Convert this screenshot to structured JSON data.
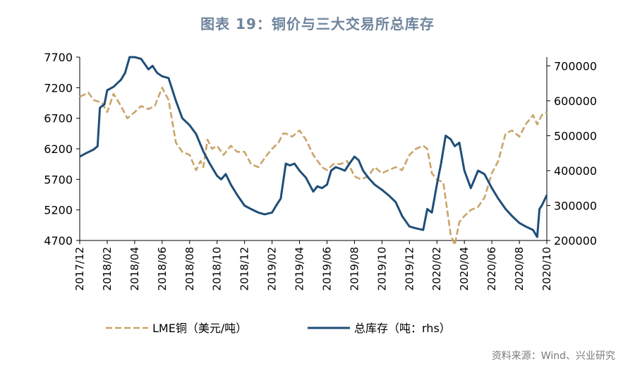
{
  "chart_data": {
    "type": "line",
    "title": "图表 19：铜价与三大交易所总库存",
    "source": "资料来源：Wind、兴业研究",
    "colors": {
      "lme": "#c9a56a",
      "inventory": "#1f4e79",
      "axis": "#000000",
      "title": "#6f849c"
    },
    "x_tick_labels": [
      "2017/12",
      "2018/02",
      "2018/04",
      "2018/06",
      "2018/08",
      "2018/10",
      "2018/12",
      "2019/02",
      "2019/04",
      "2019/06",
      "2019/08",
      "2019/10",
      "2019/12",
      "2020/02",
      "2020/04",
      "2020/06",
      "2020/08",
      "2020/10"
    ],
    "x_range": [
      "2017-12",
      "2020-10"
    ],
    "left_axis": {
      "ticks": [
        4700,
        5200,
        5700,
        6200,
        6700,
        7200,
        7700
      ],
      "range": [
        4700,
        7700
      ]
    },
    "right_axis": {
      "ticks": [
        200000,
        300000,
        400000,
        500000,
        600000,
        700000
      ],
      "range": [
        200000,
        725000
      ]
    },
    "grid": false,
    "legend_position": "bottom",
    "series": [
      {
        "name": "LME铜（美元/吨）",
        "axis": "left",
        "style": "dashed",
        "points": [
          [
            "2017-12",
            7050
          ],
          [
            "2017-12-20",
            7120
          ],
          [
            "2018-01",
            7000
          ],
          [
            "2018-01-20",
            6950
          ],
          [
            "2018-02",
            6800
          ],
          [
            "2018-02-15",
            7100
          ],
          [
            "2018-03",
            6900
          ],
          [
            "2018-03-15",
            6700
          ],
          [
            "2018-04",
            6800
          ],
          [
            "2018-04-15",
            6900
          ],
          [
            "2018-05",
            6850
          ],
          [
            "2018-05-15",
            6900
          ],
          [
            "2018-06",
            7200
          ],
          [
            "2018-06-15",
            7000
          ],
          [
            "2018-07",
            6300
          ],
          [
            "2018-07-15",
            6150
          ],
          [
            "2018-08",
            6100
          ],
          [
            "2018-08-15",
            5850
          ],
          [
            "2018-08-25",
            6000
          ],
          [
            "2018-09",
            5900
          ],
          [
            "2018-09-10",
            6350
          ],
          [
            "2018-09-20",
            6200
          ],
          [
            "2018-10",
            6250
          ],
          [
            "2018-10-15",
            6100
          ],
          [
            "2018-11",
            6250
          ],
          [
            "2018-11-15",
            6150
          ],
          [
            "2018-12",
            6150
          ],
          [
            "2018-12-15",
            5950
          ],
          [
            "2019-01",
            5900
          ],
          [
            "2019-01-20",
            6100
          ],
          [
            "2019-02",
            6200
          ],
          [
            "2019-02-15",
            6300
          ],
          [
            "2019-02-25",
            6450
          ],
          [
            "2019-03",
            6450
          ],
          [
            "2019-03-15",
            6400
          ],
          [
            "2019-04",
            6500
          ],
          [
            "2019-04-15",
            6350
          ],
          [
            "2019-05",
            6100
          ],
          [
            "2019-05-20",
            5900
          ],
          [
            "2019-06",
            5850
          ],
          [
            "2019-06-15",
            5950
          ],
          [
            "2019-07",
            5950
          ],
          [
            "2019-07-15",
            6000
          ],
          [
            "2019-08",
            5750
          ],
          [
            "2019-08-15",
            5700
          ],
          [
            "2019-09",
            5750
          ],
          [
            "2019-09-15",
            5900
          ],
          [
            "2019-10",
            5800
          ],
          [
            "2019-10-15",
            5850
          ],
          [
            "2019-11",
            5900
          ],
          [
            "2019-11-15",
            5850
          ],
          [
            "2019-12",
            6100
          ],
          [
            "2019-12-15",
            6200
          ],
          [
            "2020-01",
            6250
          ],
          [
            "2020-01-10",
            6200
          ],
          [
            "2020-01-20",
            5800
          ],
          [
            "2020-02",
            5700
          ],
          [
            "2020-02-15",
            5650
          ],
          [
            "2020-03",
            4800
          ],
          [
            "2020-03-10",
            4625
          ],
          [
            "2020-03-20",
            5000
          ],
          [
            "2020-04",
            5100
          ],
          [
            "2020-04-15",
            5200
          ],
          [
            "2020-05",
            5250
          ],
          [
            "2020-05-15",
            5400
          ],
          [
            "2020-06",
            5800
          ],
          [
            "2020-06-15",
            6000
          ],
          [
            "2020-07",
            6450
          ],
          [
            "2020-07-15",
            6500
          ],
          [
            "2020-08",
            6400
          ],
          [
            "2020-08-15",
            6600
          ],
          [
            "2020-09",
            6750
          ],
          [
            "2020-09-10",
            6600
          ],
          [
            "2020-09-20",
            6750
          ],
          [
            "2020-10",
            6800
          ]
        ]
      },
      {
        "name": "总库存（吨：rhs）",
        "axis": "right",
        "style": "solid",
        "points": [
          [
            "2017-12",
            440000
          ],
          [
            "2017-12-15",
            450000
          ],
          [
            "2018-01",
            460000
          ],
          [
            "2018-01-10",
            470000
          ],
          [
            "2018-01-15",
            580000
          ],
          [
            "2018-01-25",
            590000
          ],
          [
            "2018-02",
            630000
          ],
          [
            "2018-02-15",
            640000
          ],
          [
            "2018-03",
            660000
          ],
          [
            "2018-03-10",
            680000
          ],
          [
            "2018-03-20",
            725000
          ],
          [
            "2018-04",
            725000
          ],
          [
            "2018-04-15",
            720000
          ],
          [
            "2018-05",
            690000
          ],
          [
            "2018-05-10",
            700000
          ],
          [
            "2018-05-20",
            680000
          ],
          [
            "2018-06",
            670000
          ],
          [
            "2018-06-15",
            665000
          ],
          [
            "2018-07",
            600000
          ],
          [
            "2018-07-15",
            550000
          ],
          [
            "2018-08",
            530000
          ],
          [
            "2018-08-15",
            505000
          ],
          [
            "2018-09",
            455000
          ],
          [
            "2018-09-15",
            420000
          ],
          [
            "2018-10",
            385000
          ],
          [
            "2018-10-10",
            375000
          ],
          [
            "2018-10-20",
            390000
          ],
          [
            "2018-11",
            360000
          ],
          [
            "2018-11-15",
            330000
          ],
          [
            "2018-12",
            300000
          ],
          [
            "2018-12-15",
            290000
          ],
          [
            "2019-01",
            280000
          ],
          [
            "2019-01-15",
            275000
          ],
          [
            "2019-02",
            280000
          ],
          [
            "2019-02-10",
            300000
          ],
          [
            "2019-02-20",
            320000
          ],
          [
            "2019-03",
            420000
          ],
          [
            "2019-03-10",
            415000
          ],
          [
            "2019-03-20",
            420000
          ],
          [
            "2019-04",
            400000
          ],
          [
            "2019-04-15",
            380000
          ],
          [
            "2019-05",
            340000
          ],
          [
            "2019-05-10",
            355000
          ],
          [
            "2019-05-20",
            350000
          ],
          [
            "2019-06",
            360000
          ],
          [
            "2019-06-10",
            400000
          ],
          [
            "2019-06-20",
            410000
          ],
          [
            "2019-07",
            405000
          ],
          [
            "2019-07-10",
            400000
          ],
          [
            "2019-07-20",
            420000
          ],
          [
            "2019-08",
            440000
          ],
          [
            "2019-08-10",
            430000
          ],
          [
            "2019-08-20",
            400000
          ],
          [
            "2019-09",
            380000
          ],
          [
            "2019-09-15",
            360000
          ],
          [
            "2019-10",
            345000
          ],
          [
            "2019-10-15",
            330000
          ],
          [
            "2019-11",
            310000
          ],
          [
            "2019-11-15",
            270000
          ],
          [
            "2019-12",
            240000
          ],
          [
            "2019-12-15",
            235000
          ],
          [
            "2020-01",
            230000
          ],
          [
            "2020-01-10",
            290000
          ],
          [
            "2020-01-20",
            280000
          ],
          [
            "2020-02",
            360000
          ],
          [
            "2020-02-10",
            420000
          ],
          [
            "2020-02-20",
            500000
          ],
          [
            "2020-03",
            490000
          ],
          [
            "2020-03-10",
            470000
          ],
          [
            "2020-03-20",
            480000
          ],
          [
            "2020-04",
            400000
          ],
          [
            "2020-04-15",
            350000
          ],
          [
            "2020-05",
            400000
          ],
          [
            "2020-05-15",
            390000
          ],
          [
            "2020-06",
            350000
          ],
          [
            "2020-06-15",
            320000
          ],
          [
            "2020-07",
            290000
          ],
          [
            "2020-07-15",
            270000
          ],
          [
            "2020-08",
            250000
          ],
          [
            "2020-08-15",
            240000
          ],
          [
            "2020-09",
            230000
          ],
          [
            "2020-09-10",
            210000
          ],
          [
            "2020-09-15",
            290000
          ],
          [
            "2020-09-20",
            300000
          ],
          [
            "2020-10",
            330000
          ]
        ]
      }
    ]
  }
}
